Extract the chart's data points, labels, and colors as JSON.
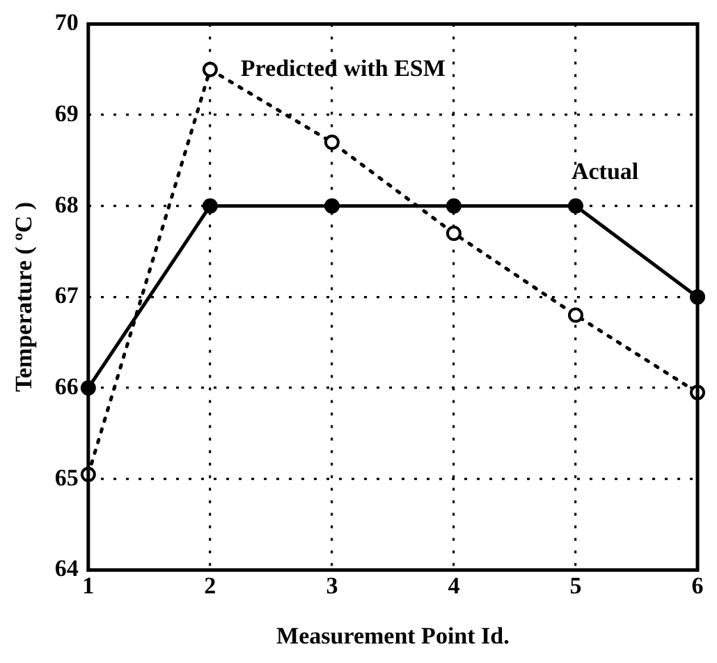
{
  "chart_data": {
    "type": "line",
    "xlabel": "Measurement Point Id.",
    "ylabel": "Temperature ( ºC )",
    "x": [
      1,
      2,
      3,
      4,
      5,
      6
    ],
    "series": [
      {
        "name": "Actual",
        "color": "#000000",
        "values": [
          66,
          68,
          68,
          68,
          68,
          67
        ],
        "line_style": "solid"
      },
      {
        "name": "Predicted with ESM",
        "color": "#000000",
        "values": [
          65.05,
          69.5,
          68.7,
          67.7,
          66.8,
          65.95
        ],
        "line_style": "dotted"
      }
    ],
    "xlim": [
      1,
      6
    ],
    "xticks": [
      1,
      2,
      3,
      4,
      5,
      6
    ],
    "ylim": [
      64,
      70
    ],
    "yticks": [
      64,
      65,
      66,
      67,
      68,
      69,
      70
    ],
    "grid": true,
    "marker": "circle",
    "legend": false
  }
}
